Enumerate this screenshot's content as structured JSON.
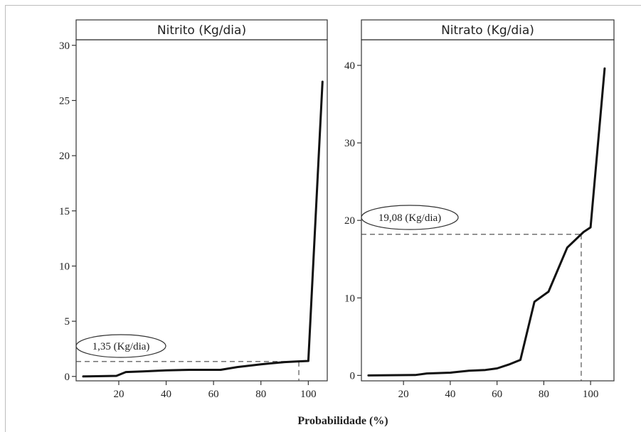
{
  "xlabel": "Probabilidade (%)",
  "chart_data": [
    {
      "type": "line",
      "title": "Nitrito (Kg/dia)",
      "xlabel": "Probabilidade (%)",
      "ylabel": "",
      "xlim": [
        2,
        108
      ],
      "ylim": [
        -0.4,
        30.5
      ],
      "xticks": [
        20,
        40,
        60,
        80,
        100
      ],
      "yticks": [
        0,
        5,
        10,
        15,
        20,
        25,
        30
      ],
      "series": [
        {
          "x": [
            5,
            19,
            23,
            30,
            40,
            50,
            63,
            70,
            80,
            85,
            90,
            95,
            100,
            106
          ],
          "y": [
            0.0,
            0.05,
            0.4,
            0.45,
            0.55,
            0.6,
            0.6,
            0.85,
            1.1,
            1.2,
            1.3,
            1.35,
            1.4,
            26.7
          ]
        }
      ],
      "annotation": {
        "text": "1,35 (Kg/dia)",
        "x": 96,
        "y": 1.35
      }
    },
    {
      "type": "line",
      "title": "Nitrato (Kg/dia)",
      "xlabel": "Probabilidade (%)",
      "ylabel": "",
      "xlim": [
        2,
        110
      ],
      "ylim": [
        -0.7,
        43.3
      ],
      "xticks": [
        20,
        40,
        60,
        80,
        100
      ],
      "yticks": [
        0,
        10,
        20,
        30,
        40
      ],
      "series": [
        {
          "x": [
            5,
            25,
            30,
            40,
            48,
            55,
            60,
            65,
            70,
            76,
            82,
            90,
            97,
            100,
            106
          ],
          "y": [
            0.0,
            0.05,
            0.25,
            0.35,
            0.6,
            0.7,
            0.9,
            1.4,
            2.0,
            9.5,
            10.8,
            16.5,
            18.5,
            19.1,
            39.6
          ]
        }
      ],
      "annotation": {
        "text": "19,08 (Kg/dia)",
        "x": 96,
        "y": 18.2
      }
    }
  ]
}
